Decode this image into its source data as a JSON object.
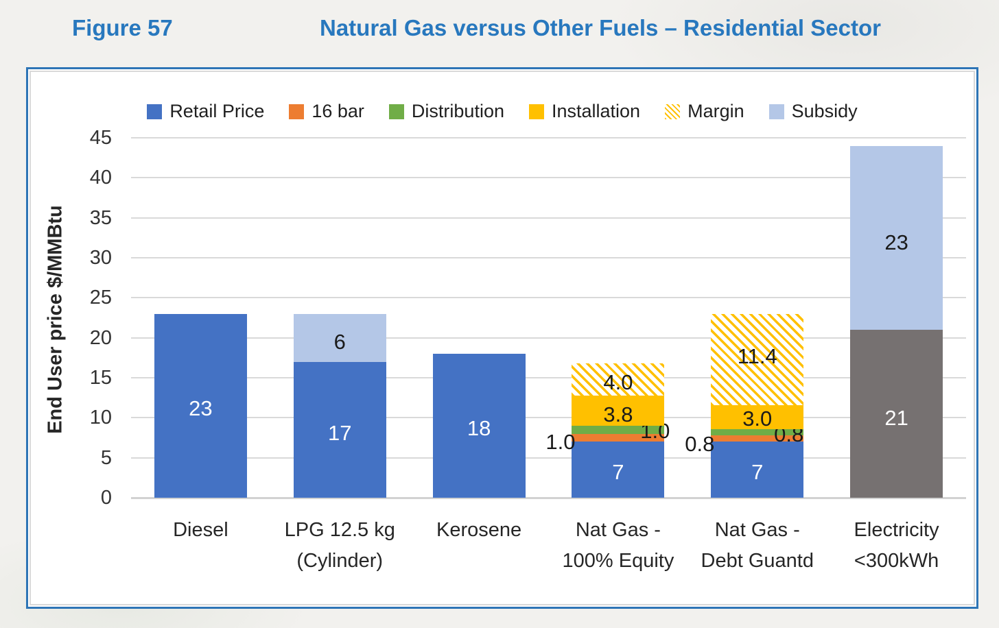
{
  "header": {
    "figure_label": "Figure 57",
    "title": "Natural Gas versus Other Fuels – Residential Sector",
    "title_color": "#2878BE"
  },
  "chart_data": {
    "type": "bar",
    "stacked": true,
    "title": "Natural Gas versus Other Fuels – Residential Sector",
    "ylabel": "End User price $/MMBtu",
    "xlabel": "",
    "ylim": [
      0,
      45
    ],
    "yticks": [
      0,
      5,
      10,
      15,
      20,
      25,
      30,
      35,
      40,
      45
    ],
    "grid": true,
    "legend_position": "top",
    "gridline_color": "#D9D9D9",
    "legend": [
      {
        "label": "Retail Price",
        "color": "#4472C4",
        "pattern": "solid"
      },
      {
        "label": "16 bar",
        "color": "#ED7D31",
        "pattern": "solid"
      },
      {
        "label": "Distribution",
        "color": "#70AD47",
        "pattern": "solid"
      },
      {
        "label": "Installation",
        "color": "#FFC000",
        "pattern": "solid"
      },
      {
        "label": "Margin",
        "color": "#FFC000",
        "pattern": "hatch"
      },
      {
        "label": "Subsidy",
        "color": "#B4C7E7",
        "pattern": "solid"
      }
    ],
    "categories": [
      "Diesel",
      "LPG 12.5 kg (Cylinder)",
      "Kerosene",
      "Nat Gas - 100% Equity",
      "Nat Gas - Debt Guantd",
      "Electricity <300kWh"
    ],
    "bars": [
      {
        "category": "Diesel",
        "label_lines": [
          "Diesel"
        ],
        "segments": [
          {
            "series": "Retail Price",
            "value": 23,
            "label": "23",
            "color": "#4472C4",
            "label_color": "#FFFFFF",
            "label_align": "center",
            "label_dy": 4
          }
        ]
      },
      {
        "category": "LPG 12.5 kg (Cylinder)",
        "label_lines": [
          "LPG 12.5 kg",
          "(Cylinder)"
        ],
        "segments": [
          {
            "series": "Retail Price",
            "value": 17,
            "label": "17",
            "color": "#4472C4",
            "label_color": "#FFFFFF",
            "label_align": "center",
            "label_dy": 5
          },
          {
            "series": "Subsidy",
            "value": 6,
            "label": "6",
            "color": "#B4C7E7",
            "label_color": "#1A1A1A",
            "label_align": "center",
            "label_dy": 6
          }
        ]
      },
      {
        "category": "Kerosene",
        "label_lines": [
          "Kerosene"
        ],
        "segments": [
          {
            "series": "Retail Price",
            "value": 18,
            "label": "18",
            "color": "#4472C4",
            "label_color": "#FFFFFF",
            "label_align": "center",
            "label_dy": 4
          }
        ]
      },
      {
        "category": "Nat Gas - 100% Equity",
        "label_lines": [
          "Nat Gas -",
          "100% Equity"
        ],
        "segments": [
          {
            "series": "Retail Price",
            "value": 7,
            "label": "7",
            "color": "#4472C4",
            "label_color": "#FFFFFF",
            "label_align": "center",
            "label_dy": 4
          },
          {
            "series": "16 bar",
            "value": 1.0,
            "label": "1.0",
            "color": "#ED7D31",
            "label_color": "#1A1A1A",
            "label_align": "left",
            "label_dx": -38,
            "label_dy": 6
          },
          {
            "series": "Distribution",
            "value": 1.0,
            "label": "1.0",
            "color": "#70AD47",
            "label_color": "#1A1A1A",
            "label_align": "right",
            "label_dx": 8,
            "label_dy": 2
          },
          {
            "series": "Installation",
            "value": 3.8,
            "label": "3.8",
            "color": "#FFC000",
            "label_color": "#1A1A1A",
            "label_align": "center",
            "label_dy": 6
          },
          {
            "series": "Margin",
            "value": 4.0,
            "label": "4.0",
            "color": "#FFC000",
            "pattern": "hatch",
            "label_color": "#1A1A1A",
            "label_align": "center",
            "label_dy": 5
          }
        ]
      },
      {
        "category": "Nat Gas - Debt Guantd",
        "label_lines": [
          "Nat Gas -",
          "Debt Guantd"
        ],
        "segments": [
          {
            "series": "Retail Price",
            "value": 7,
            "label": "7",
            "color": "#4472C4",
            "label_color": "#FFFFFF",
            "label_align": "center",
            "label_dy": 4
          },
          {
            "series": "16 bar",
            "value": 0.8,
            "label": "0.8",
            "color": "#ED7D31",
            "label_color": "#1A1A1A",
            "label_align": "left",
            "label_dx": -38,
            "label_dy": 8
          },
          {
            "series": "Distribution",
            "value": 0.8,
            "label": "0.8",
            "color": "#70AD47",
            "label_color": "#1A1A1A",
            "label_align": "right",
            "label_dx": 0,
            "label_dy": 4
          },
          {
            "series": "Installation",
            "value": 3.0,
            "label": "3.0",
            "color": "#FFC000",
            "label_color": "#1A1A1A",
            "label_align": "center",
            "label_dy": 3
          },
          {
            "series": "Margin",
            "value": 11.4,
            "label": "11.4",
            "color": "#FFC000",
            "pattern": "hatch",
            "label_color": "#1A1A1A",
            "label_align": "center",
            "label_dy": -4
          }
        ]
      },
      {
        "category": "Electricity <300kWh",
        "label_lines": [
          "Electricity",
          "<300kWh"
        ],
        "segments": [
          {
            "series": "Retail Price",
            "value": 21,
            "label": "21",
            "color": "#767171",
            "label_color": "#FFFFFF",
            "label_align": "center",
            "label_dy": 6
          },
          {
            "series": "Subsidy",
            "value": 23,
            "label": "23",
            "color": "#B4C7E7",
            "label_color": "#1A1A1A",
            "label_align": "center",
            "label_dy": 7
          }
        ]
      }
    ]
  }
}
